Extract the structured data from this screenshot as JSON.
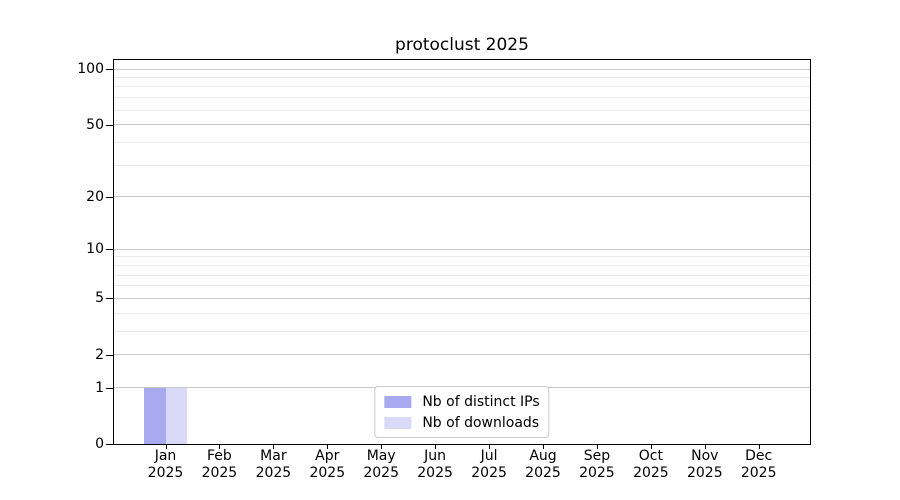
{
  "figure": {
    "background": "#ffffff"
  },
  "chart_data": {
    "type": "bar",
    "title": "protoclust 2025",
    "x_categories": [
      {
        "month": "Jan",
        "year": "2025"
      },
      {
        "month": "Feb",
        "year": "2025"
      },
      {
        "month": "Mar",
        "year": "2025"
      },
      {
        "month": "Apr",
        "year": "2025"
      },
      {
        "month": "May",
        "year": "2025"
      },
      {
        "month": "Jun",
        "year": "2025"
      },
      {
        "month": "Jul",
        "year": "2025"
      },
      {
        "month": "Aug",
        "year": "2025"
      },
      {
        "month": "Sep",
        "year": "2025"
      },
      {
        "month": "Oct",
        "year": "2025"
      },
      {
        "month": "Nov",
        "year": "2025"
      },
      {
        "month": "Dec",
        "year": "2025"
      }
    ],
    "series": [
      {
        "name": "Nb of distinct IPs",
        "color": "#a9a9f0",
        "values": [
          1,
          0,
          0,
          0,
          0,
          0,
          0,
          0,
          0,
          0,
          0,
          0
        ]
      },
      {
        "name": "Nb of downloads",
        "color": "#dadaf8",
        "values": [
          1,
          0,
          0,
          0,
          0,
          0,
          0,
          0,
          0,
          0,
          0,
          0
        ]
      }
    ],
    "y_scale": "log10(1+x)",
    "y_ticks": [
      0,
      1,
      2,
      5,
      10,
      20,
      50,
      100
    ],
    "y_minor_gridlines": [
      3,
      4,
      6,
      7,
      8,
      9,
      30,
      40,
      60,
      70,
      80,
      90
    ],
    "ylim": [
      0,
      113
    ],
    "grid": "horizontal-only",
    "legend": {
      "position": "lower center",
      "entries": [
        "Nb of distinct IPs",
        "Nb of downloads"
      ]
    },
    "colors": {
      "major_grid": "#c9c9c9",
      "minor_grid": "#eaeaea",
      "axis": "#000000",
      "text": "#000000"
    }
  }
}
